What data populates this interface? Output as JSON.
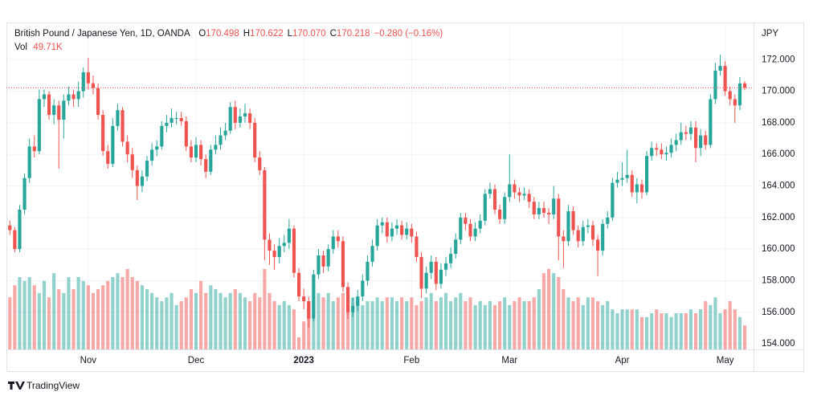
{
  "chart_data": {
    "type": "candlestick",
    "symbol": "British Pound / Japanese Yen, 1D, OANDA",
    "ohlc_fields": [
      {
        "label": "O",
        "value": "170.498"
      },
      {
        "label": "H",
        "value": "170.622"
      },
      {
        "label": "L",
        "value": "170.070"
      },
      {
        "label": "C",
        "value": "170.218"
      }
    ],
    "change": "−0.280 (−0.16%)",
    "volume_label": "Vol",
    "volume_value": "49.71K",
    "currency": "JPY",
    "branding": "TradingView",
    "colors": {
      "up": "#26a69a",
      "down": "#ef5350"
    },
    "grid": true,
    "xlim": [
      -0.7,
      151.8
    ],
    "xticks": [
      {
        "value": 16,
        "label": "Nov"
      },
      {
        "value": 38,
        "label": "Dec"
      },
      {
        "value": 60,
        "label": "2023"
      },
      {
        "value": 82,
        "label": "Feb"
      },
      {
        "value": 102,
        "label": "Mar"
      },
      {
        "value": 125,
        "label": "Apr"
      },
      {
        "value": 146,
        "label": "May"
      }
    ],
    "ylim": [
      153.65,
      174.25
    ],
    "yticks": [
      {
        "value": 154,
        "label": "154.000"
      },
      {
        "value": 156,
        "label": "156.000"
      },
      {
        "value": 158,
        "label": "158.000"
      },
      {
        "value": 160,
        "label": "160.000"
      },
      {
        "value": 162,
        "label": "162.000"
      },
      {
        "value": 164,
        "label": "164.000"
      },
      {
        "value": 166,
        "label": "166.000"
      },
      {
        "value": 168,
        "label": "168.000"
      },
      {
        "value": 170,
        "label": "170.000"
      },
      {
        "value": 172,
        "label": "172.000"
      }
    ],
    "volume_ylim": [
      0,
      675
    ],
    "ohlc": [
      [
        161.5,
        161.8,
        160.9,
        161.2
      ],
      [
        161.2,
        161.4,
        159.8,
        160.0
      ],
      [
        160.0,
        162.8,
        159.8,
        162.5
      ],
      [
        162.5,
        164.8,
        162.2,
        164.5
      ],
      [
        164.5,
        167.0,
        164.2,
        166.5
      ],
      [
        166.5,
        167.2,
        165.8,
        166.2
      ],
      [
        166.2,
        170.1,
        166.0,
        169.5
      ],
      [
        169.5,
        170.1,
        169.0,
        169.8
      ],
      [
        169.8,
        170.0,
        168.2,
        168.5
      ],
      [
        168.5,
        169.5,
        167.9,
        169.1
      ],
      [
        169.1,
        169.4,
        165.1,
        168.2
      ],
      [
        168.2,
        169.8,
        167.0,
        169.4
      ],
      [
        169.4,
        170.3,
        169.1,
        169.8
      ],
      [
        169.8,
        170.1,
        169.0,
        169.5
      ],
      [
        169.5,
        170.6,
        169.0,
        170.0
      ],
      [
        170.0,
        171.5,
        169.6,
        171.2
      ],
      [
        171.2,
        172.1,
        170.1,
        170.5
      ],
      [
        170.5,
        171.0,
        169.8,
        170.2
      ],
      [
        170.2,
        170.5,
        168.2,
        168.5
      ],
      [
        168.5,
        168.8,
        165.9,
        166.2
      ],
      [
        166.2,
        166.6,
        165.1,
        165.4
      ],
      [
        165.4,
        168.3,
        165.2,
        167.8
      ],
      [
        167.8,
        169.2,
        167.5,
        168.8
      ],
      [
        168.8,
        169.0,
        166.5,
        166.8
      ],
      [
        166.8,
        167.2,
        165.5,
        166.0
      ],
      [
        166.0,
        166.4,
        164.5,
        165.0
      ],
      [
        165.0,
        165.3,
        163.1,
        164.0
      ],
      [
        164.0,
        165.0,
        163.6,
        164.6
      ],
      [
        164.6,
        165.9,
        164.3,
        165.6
      ],
      [
        165.6,
        166.7,
        165.3,
        166.3
      ],
      [
        166.3,
        166.9,
        165.9,
        166.5
      ],
      [
        166.5,
        168.1,
        166.3,
        167.8
      ],
      [
        167.8,
        168.5,
        167.4,
        168.0
      ],
      [
        168.0,
        168.9,
        167.7,
        168.3
      ],
      [
        168.3,
        168.7,
        167.9,
        168.3
      ],
      [
        168.3,
        168.7,
        167.8,
        168.1
      ],
      [
        168.1,
        168.4,
        166.2,
        166.5
      ],
      [
        166.5,
        166.9,
        165.5,
        165.8
      ],
      [
        165.8,
        167.1,
        165.5,
        166.6
      ],
      [
        166.6,
        166.9,
        165.3,
        165.7
      ],
      [
        165.7,
        166.0,
        164.5,
        164.9
      ],
      [
        164.9,
        166.6,
        164.7,
        166.3
      ],
      [
        166.3,
        167.2,
        166.0,
        166.6
      ],
      [
        166.6,
        167.7,
        166.3,
        167.2
      ],
      [
        167.2,
        168.0,
        166.9,
        167.5
      ],
      [
        167.5,
        169.3,
        167.3,
        169.0
      ],
      [
        169.0,
        169.4,
        167.6,
        168.0
      ],
      [
        168.0,
        168.9,
        167.7,
        168.4
      ],
      [
        168.4,
        169.2,
        168.0,
        168.6
      ],
      [
        168.6,
        168.9,
        167.6,
        168.0
      ],
      [
        168.0,
        168.3,
        165.5,
        165.8
      ],
      [
        165.8,
        166.2,
        164.7,
        165.0
      ],
      [
        165.0,
        165.2,
        159.3,
        160.6
      ],
      [
        160.6,
        161.0,
        159.0,
        159.9
      ],
      [
        159.9,
        160.3,
        158.7,
        159.5
      ],
      [
        159.5,
        160.7,
        159.1,
        160.2
      ],
      [
        160.2,
        160.9,
        159.8,
        160.4
      ],
      [
        160.4,
        161.9,
        160.0,
        161.3
      ],
      [
        161.3,
        161.5,
        158.2,
        158.5
      ],
      [
        158.5,
        158.8,
        156.7,
        157.0
      ],
      [
        157.0,
        157.5,
        156.2,
        156.7
      ],
      [
        156.7,
        157.0,
        155.0,
        155.6
      ],
      [
        155.6,
        158.7,
        155.4,
        158.4
      ],
      [
        158.4,
        160.0,
        158.1,
        159.6
      ],
      [
        159.6,
        159.9,
        158.5,
        158.9
      ],
      [
        158.9,
        160.3,
        158.6,
        160.0
      ],
      [
        160.0,
        161.2,
        159.7,
        160.8
      ],
      [
        160.8,
        161.2,
        160.1,
        160.5
      ],
      [
        160.5,
        160.8,
        157.3,
        157.6
      ],
      [
        157.6,
        157.9,
        155.6,
        156.0
      ],
      [
        156.0,
        156.9,
        155.7,
        156.4
      ],
      [
        156.4,
        157.4,
        156.1,
        157.0
      ],
      [
        157.0,
        158.4,
        156.7,
        158.0
      ],
      [
        158.0,
        159.6,
        157.7,
        159.2
      ],
      [
        159.2,
        160.6,
        158.9,
        160.2
      ],
      [
        160.2,
        161.9,
        159.9,
        161.5
      ],
      [
        161.5,
        162.0,
        161.0,
        161.7
      ],
      [
        161.7,
        162.0,
        160.4,
        160.8
      ],
      [
        160.8,
        161.7,
        160.5,
        161.3
      ],
      [
        161.3,
        161.9,
        160.9,
        161.5
      ],
      [
        161.5,
        161.8,
        160.6,
        160.9
      ],
      [
        160.9,
        161.7,
        160.6,
        161.3
      ],
      [
        161.3,
        161.6,
        160.4,
        160.8
      ],
      [
        160.8,
        161.1,
        159.2,
        159.5
      ],
      [
        159.5,
        159.8,
        156.9,
        157.5
      ],
      [
        157.5,
        158.9,
        157.2,
        158.5
      ],
      [
        158.5,
        159.6,
        158.1,
        159.2
      ],
      [
        159.2,
        159.5,
        157.4,
        157.8
      ],
      [
        157.8,
        159.1,
        157.5,
        158.7
      ],
      [
        158.7,
        159.5,
        158.3,
        159.1
      ],
      [
        159.1,
        160.1,
        158.8,
        159.7
      ],
      [
        159.7,
        161.0,
        159.4,
        160.6
      ],
      [
        160.6,
        162.3,
        160.3,
        162.0
      ],
      [
        162.0,
        162.3,
        161.2,
        161.6
      ],
      [
        161.6,
        161.9,
        160.5,
        160.8
      ],
      [
        160.8,
        161.7,
        160.5,
        161.3
      ],
      [
        161.3,
        162.2,
        161.0,
        161.8
      ],
      [
        161.8,
        163.8,
        161.5,
        163.5
      ],
      [
        163.5,
        164.2,
        163.2,
        163.8
      ],
      [
        163.8,
        164.1,
        162.2,
        162.5
      ],
      [
        162.5,
        162.8,
        161.6,
        161.9
      ],
      [
        161.9,
        163.6,
        161.6,
        163.3
      ],
      [
        163.3,
        166.0,
        163.0,
        164.1
      ],
      [
        164.1,
        164.4,
        163.2,
        163.6
      ],
      [
        163.6,
        163.9,
        163.0,
        163.4
      ],
      [
        163.4,
        163.9,
        163.1,
        163.5
      ],
      [
        163.5,
        163.8,
        162.6,
        163.0
      ],
      [
        163.0,
        163.3,
        161.9,
        162.2
      ],
      [
        162.2,
        163.0,
        161.9,
        162.6
      ],
      [
        162.6,
        163.0,
        162.0,
        162.3
      ],
      [
        162.3,
        162.6,
        161.6,
        162.2
      ],
      [
        162.2,
        164.0,
        161.9,
        163.2
      ],
      [
        163.2,
        163.5,
        159.3,
        160.8
      ],
      [
        160.8,
        161.2,
        158.8,
        160.5
      ],
      [
        160.5,
        162.8,
        160.2,
        162.4
      ],
      [
        162.4,
        162.7,
        160.9,
        161.2
      ],
      [
        161.2,
        161.5,
        160.1,
        160.5
      ],
      [
        160.5,
        161.8,
        160.2,
        161.4
      ],
      [
        161.4,
        161.9,
        161.0,
        161.5
      ],
      [
        161.5,
        161.8,
        160.2,
        160.6
      ],
      [
        160.6,
        160.9,
        158.3,
        159.9
      ],
      [
        159.9,
        161.9,
        159.6,
        161.6
      ],
      [
        161.6,
        162.4,
        161.3,
        162.0
      ],
      [
        162.0,
        164.5,
        161.8,
        164.2
      ],
      [
        164.2,
        164.9,
        163.9,
        164.4
      ],
      [
        164.4,
        165.5,
        164.0,
        164.5
      ],
      [
        164.5,
        166.3,
        164.2,
        164.7
      ],
      [
        164.7,
        165.0,
        163.3,
        163.6
      ],
      [
        163.6,
        164.5,
        162.9,
        164.1
      ],
      [
        164.1,
        164.4,
        163.2,
        163.6
      ],
      [
        163.6,
        166.2,
        163.4,
        165.9
      ],
      [
        165.9,
        166.8,
        165.6,
        166.4
      ],
      [
        166.4,
        166.7,
        165.9,
        166.3
      ],
      [
        166.3,
        166.7,
        165.7,
        166.0
      ],
      [
        166.0,
        166.5,
        165.6,
        166.1
      ],
      [
        166.1,
        167.0,
        165.8,
        166.6
      ],
      [
        166.6,
        167.3,
        166.2,
        166.9
      ],
      [
        166.9,
        168.0,
        166.6,
        167.4
      ],
      [
        167.4,
        167.8,
        166.9,
        167.3
      ],
      [
        167.3,
        168.1,
        166.9,
        167.7
      ],
      [
        167.7,
        168.1,
        165.5,
        166.4
      ],
      [
        166.4,
        167.6,
        165.9,
        167.2
      ],
      [
        167.2,
        167.5,
        166.3,
        166.6
      ],
      [
        166.6,
        169.8,
        166.4,
        169.5
      ],
      [
        169.5,
        171.8,
        169.2,
        171.3
      ],
      [
        171.3,
        172.3,
        171.0,
        171.6
      ],
      [
        171.6,
        171.9,
        169.7,
        170.0
      ],
      [
        170.0,
        170.3,
        169.1,
        169.5
      ],
      [
        169.5,
        169.8,
        168.0,
        169.1
      ],
      [
        169.1,
        170.9,
        168.8,
        170.498
      ],
      [
        170.498,
        170.622,
        170.07,
        170.218
      ]
    ],
    "volume": [
      108,
      133,
      150,
      142,
      150,
      133,
      117,
      142,
      108,
      158,
      125,
      117,
      150,
      125,
      150,
      142,
      133,
      117,
      125,
      133,
      142,
      150,
      158,
      150,
      167,
      150,
      142,
      133,
      125,
      117,
      108,
      100,
      108,
      117,
      92,
      100,
      108,
      125,
      117,
      142,
      117,
      133,
      125,
      117,
      108,
      117,
      125,
      117,
      108,
      100,
      117,
      108,
      167,
      117,
      100,
      92,
      100,
      92,
      83,
      25,
      58,
      92,
      100,
      117,
      108,
      117,
      100,
      108,
      117,
      100,
      108,
      100,
      92,
      100,
      100,
      108,
      100,
      108,
      108,
      100,
      108,
      100,
      108,
      92,
      100,
      108,
      117,
      100,
      108,
      117,
      100,
      108,
      117,
      100,
      108,
      92,
      100,
      92,
      100,
      92,
      100,
      108,
      92,
      100,
      108,
      100,
      100,
      108,
      125,
      158,
      167,
      158,
      150,
      125,
      108,
      100,
      108,
      92,
      108,
      108,
      100,
      92,
      100,
      83,
      75,
      83,
      83,
      83,
      83,
      67,
      67,
      75,
      83,
      75,
      75,
      67,
      75,
      75,
      75,
      83,
      75,
      83,
      100,
      92,
      108,
      75,
      83,
      100,
      83,
      67,
      49.71
    ]
  }
}
